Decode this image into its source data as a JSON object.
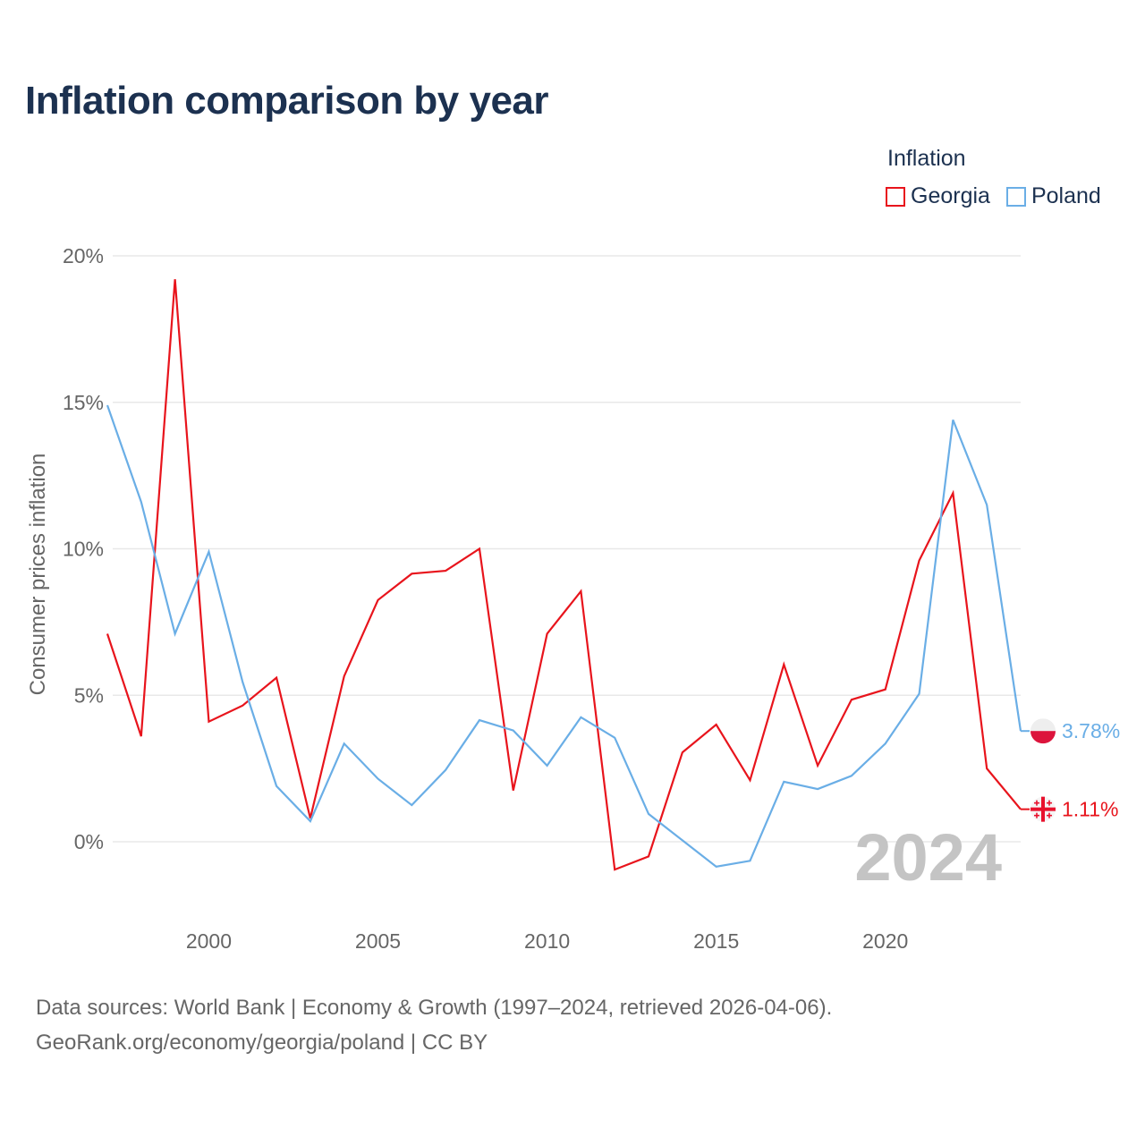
{
  "title": "Inflation comparison by year",
  "legend": {
    "title": "Inflation",
    "items": [
      {
        "label": "Georgia",
        "color": "#e8141c"
      },
      {
        "label": "Poland",
        "color": "#6aaee6"
      }
    ]
  },
  "chart_data": {
    "type": "line",
    "ylabel": "Consumer prices inflation",
    "xlabel": "",
    "xlim": [
      1997,
      2024
    ],
    "ylim": [
      -2.5,
      20.5
    ],
    "yticks": [
      0,
      5,
      10,
      15,
      20
    ],
    "ytick_labels": [
      "0%",
      "5%",
      "10%",
      "15%",
      "20%"
    ],
    "xticks": [
      2000,
      2005,
      2010,
      2015,
      2020
    ],
    "xtick_labels": [
      "2000",
      "2005",
      "2010",
      "2015",
      "2020"
    ],
    "watermark_year": "2024",
    "x": [
      1997,
      1998,
      1999,
      2000,
      2001,
      2002,
      2003,
      2004,
      2005,
      2006,
      2007,
      2008,
      2009,
      2010,
      2011,
      2012,
      2013,
      2014,
      2015,
      2016,
      2017,
      2018,
      2019,
      2020,
      2021,
      2022,
      2023,
      2024
    ],
    "series": [
      {
        "name": "Georgia",
        "color": "#e8141c",
        "end_label": "1.11%",
        "values": [
          7.1,
          3.6,
          19.2,
          4.1,
          4.65,
          5.6,
          0.8,
          5.65,
          8.25,
          9.15,
          9.25,
          10.0,
          1.75,
          7.1,
          8.55,
          -0.95,
          -0.5,
          3.05,
          4.0,
          2.1,
          6.05,
          2.6,
          4.85,
          5.2,
          9.6,
          11.9,
          2.5,
          1.11
        ]
      },
      {
        "name": "Poland",
        "color": "#6aaee6",
        "end_label": "3.78%",
        "values": [
          14.9,
          11.6,
          7.1,
          9.9,
          5.45,
          1.9,
          0.7,
          3.35,
          2.15,
          1.25,
          2.45,
          4.15,
          3.8,
          2.6,
          4.25,
          3.55,
          0.95,
          0.05,
          -0.85,
          -0.65,
          2.05,
          1.8,
          2.25,
          3.35,
          5.05,
          14.4,
          11.5,
          3.78
        ]
      }
    ]
  },
  "footer": {
    "line1": "Data sources: World Bank | Economy & Growth (1997–2024, retrieved 2026-04-06).",
    "line2": "GeoRank.org/economy/georgia/poland | CC BY"
  }
}
